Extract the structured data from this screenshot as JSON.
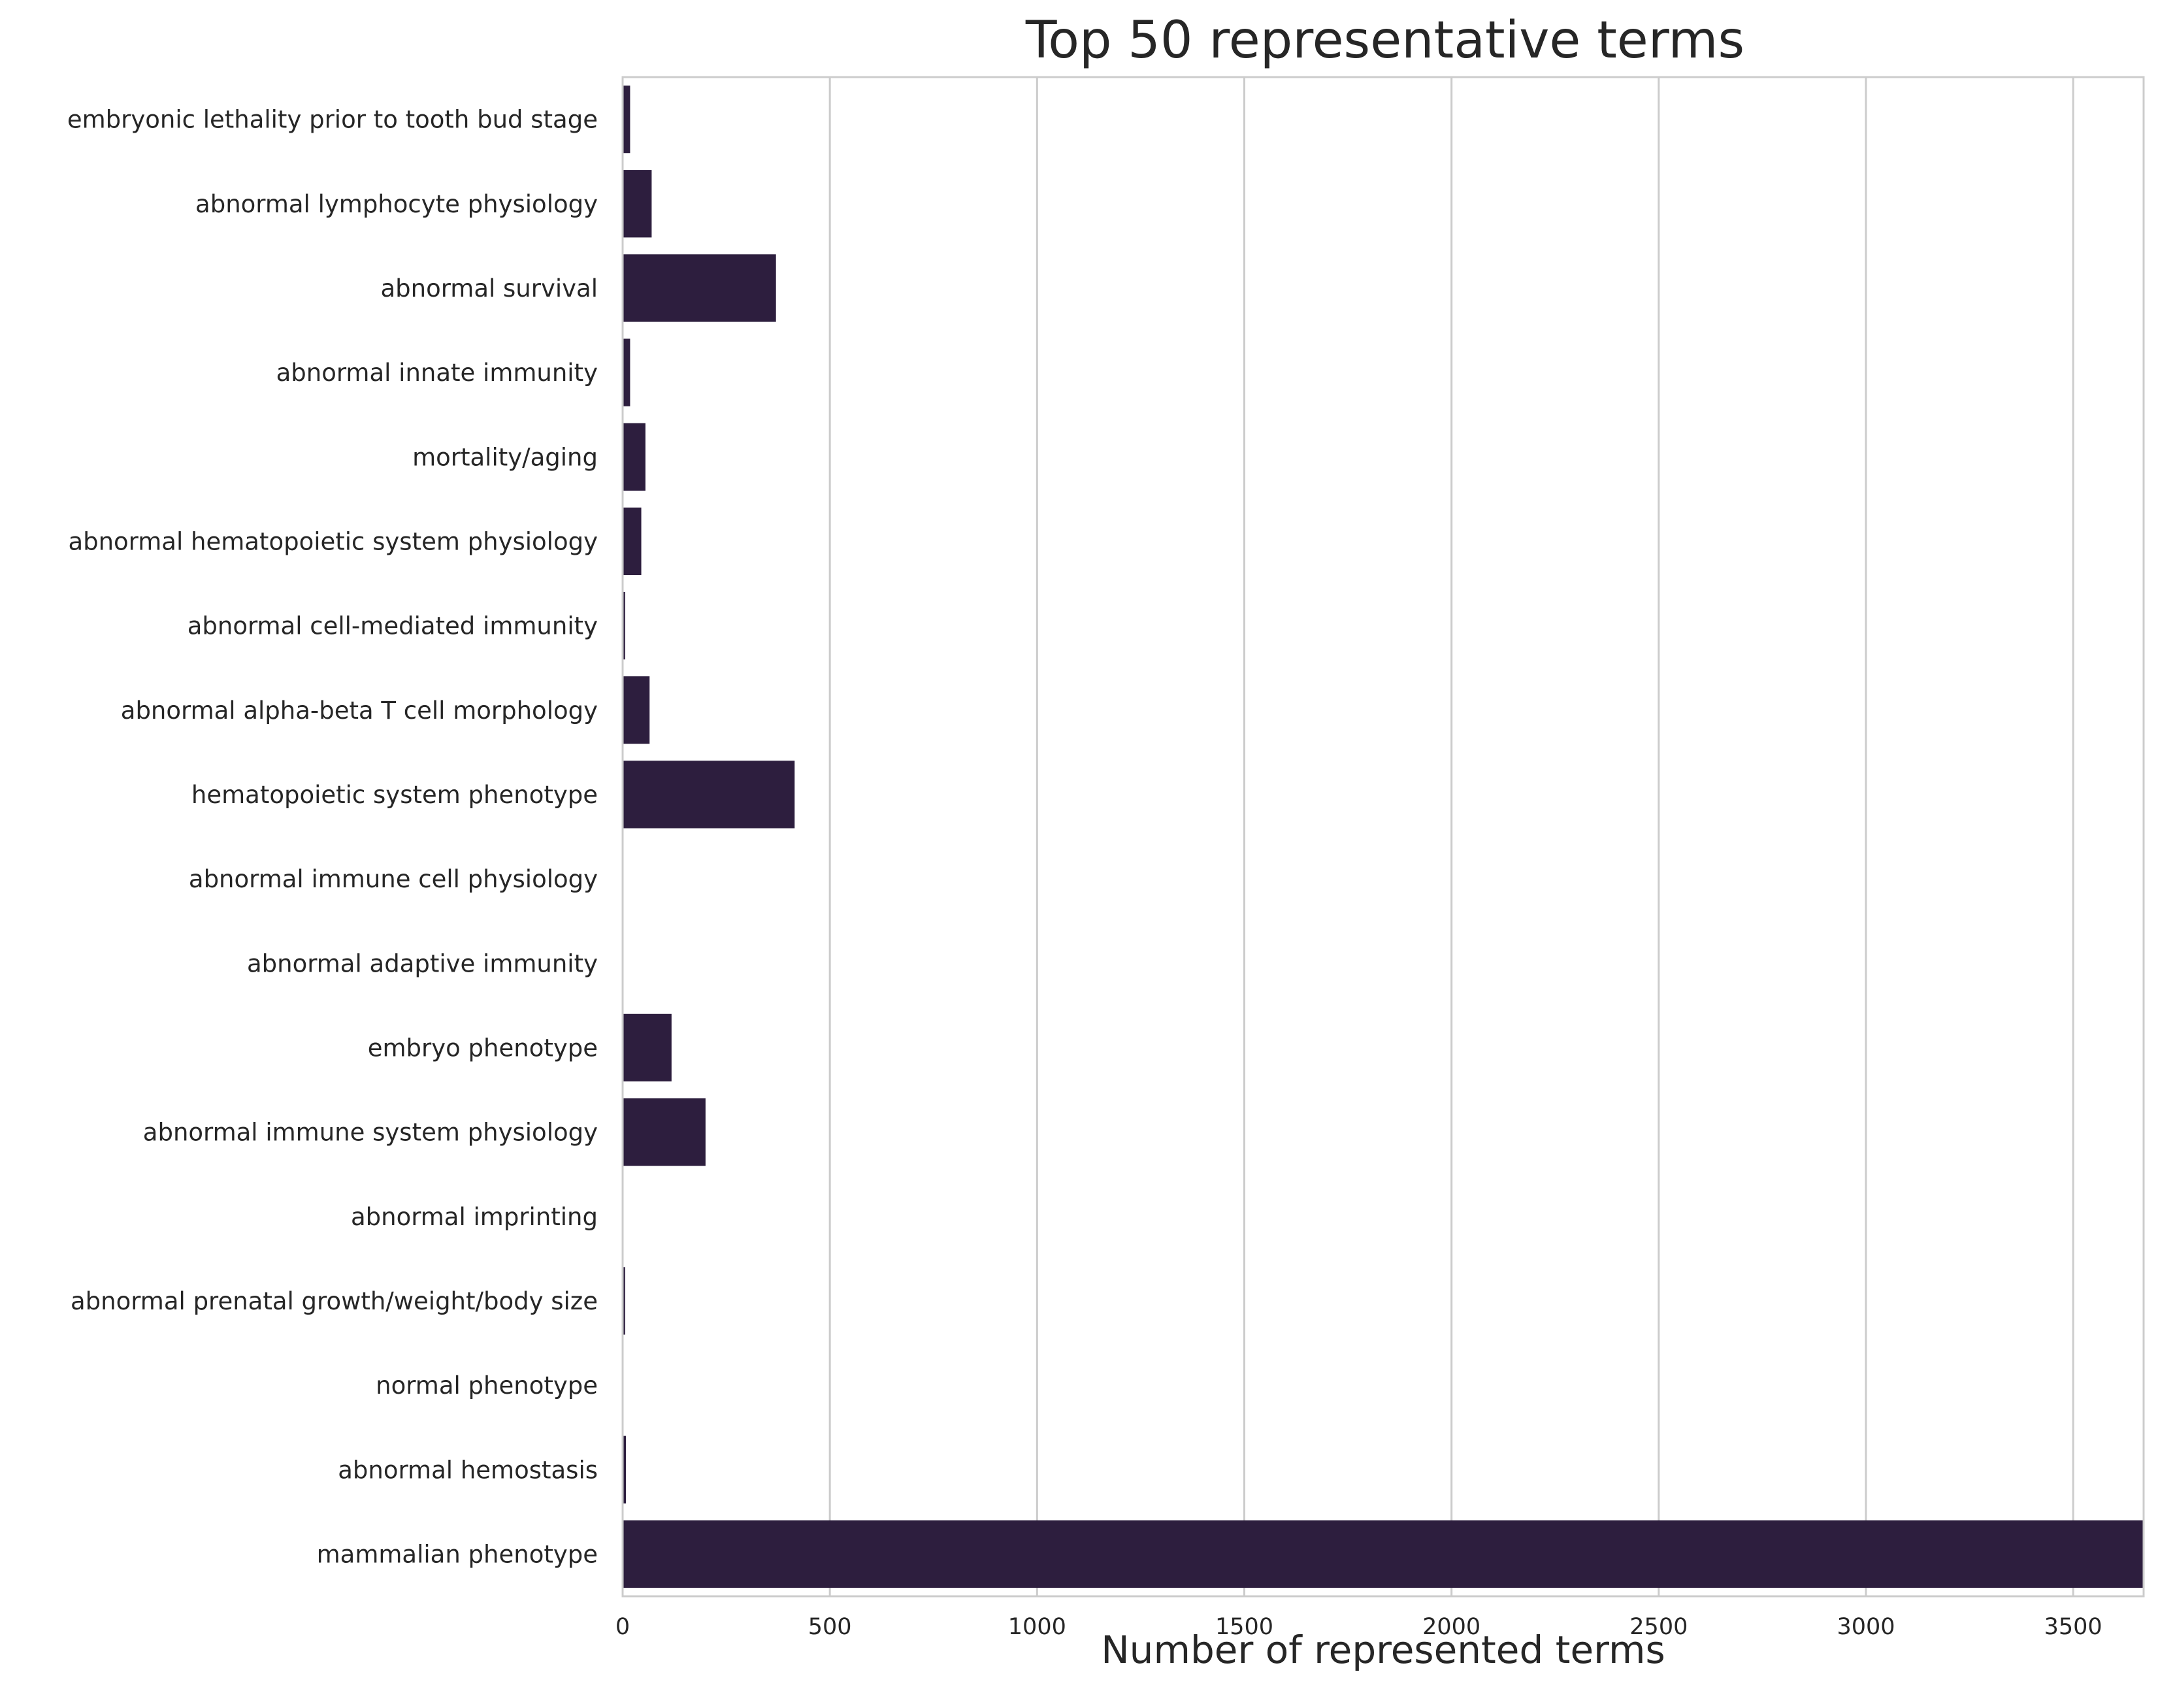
{
  "chart_data": {
    "type": "bar",
    "orientation": "horizontal",
    "title": "Top 50 representative terms",
    "xlabel": "Number of represented terms",
    "ylabel": "",
    "xlim": [
      0,
      3670
    ],
    "xticks": [
      0,
      500,
      1000,
      1500,
      2000,
      2500,
      3000,
      3500
    ],
    "grid": true,
    "bar_color": "#2d1e3e",
    "categories": [
      "embryonic lethality prior to tooth bud stage",
      "abnormal lymphocyte physiology",
      "abnormal survival",
      "abnormal innate immunity",
      "mortality/aging",
      "abnormal hematopoietic system physiology",
      "abnormal cell-mediated immunity",
      "abnormal alpha-beta T cell morphology",
      "hematopoietic system phenotype",
      "abnormal immune cell physiology",
      "abnormal adaptive immunity",
      "embryo phenotype",
      "abnormal immune system physiology",
      "abnormal imprinting",
      "abnormal prenatal growth/weight/body size",
      "normal phenotype",
      "abnormal hemostasis",
      "mammalian phenotype"
    ],
    "values": [
      18,
      70,
      370,
      18,
      55,
      45,
      6,
      65,
      415,
      1,
      1,
      118,
      200,
      1,
      6,
      1,
      8,
      3670
    ]
  }
}
